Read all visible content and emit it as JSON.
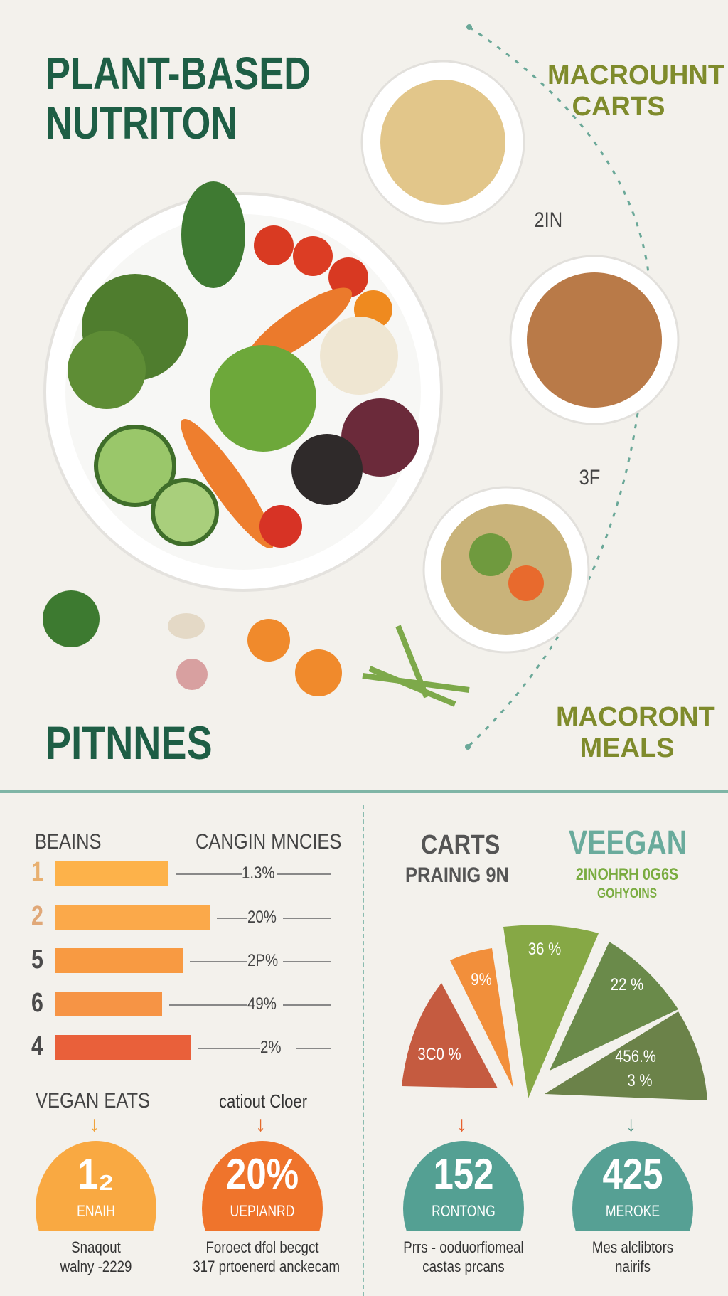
{
  "header": {
    "title_line1": "PLANT-BASED",
    "title_line2": "NUTRITON",
    "subtitle": "PITNNES"
  },
  "right_labels": {
    "top_line1": "MACROUHNT",
    "top_line2": "CARTS",
    "step1": "2IN",
    "step2": "3F",
    "bottom_line1": "MACORONT",
    "bottom_line2": "MEALS"
  },
  "bars": {
    "header_left": "BEAINS",
    "header_right": "CANGIN MNCIES",
    "items": [
      {
        "rank": "1",
        "value": "1.3%",
        "fill": 0.55,
        "color": "#fdb24a",
        "rank_color": "#e8b070"
      },
      {
        "rank": "2",
        "value": "20%",
        "fill": 0.75,
        "color": "#fba94a",
        "rank_color": "#e0a878"
      },
      {
        "rank": "5",
        "value": "2P%",
        "fill": 0.62,
        "color": "#f89a42",
        "rank_color": "#4a4a4a"
      },
      {
        "rank": "6",
        "value": "49%",
        "fill": 0.52,
        "color": "#f69445",
        "rank_color": "#4a4a4a"
      },
      {
        "rank": "4",
        "value": "2%",
        "fill": 0.66,
        "color": "#e9603a",
        "rank_color": "#4a4a4a"
      }
    ]
  },
  "pie": {
    "heading_line1": "CARTS",
    "heading_line2": "PRAINIG 9N",
    "vegan_title": "VEEGAN",
    "vegan_line2": "2INOHRH 0G6S",
    "vegan_line3": "GOHYOINS",
    "slices": [
      {
        "label": "3C0 %",
        "color": "#c55b40"
      },
      {
        "label": "9%",
        "color": "#f28f3b"
      },
      {
        "label": "36 %",
        "color": "#86a845"
      },
      {
        "label": "22 %",
        "color": "#6a8a4a"
      },
      {
        "label": "456.%",
        "label2": "3 %",
        "color": "#6b8249"
      }
    ]
  },
  "stats": {
    "left_heading": "VEGAN EATS",
    "mid_heading": "catiout Cloer",
    "items": [
      {
        "value": "1₂",
        "label": "ENAIH",
        "caption1": "Snaqout",
        "caption2": "walny -2229",
        "color": "#f9a942",
        "arrow": "#f0a23c"
      },
      {
        "value": "20%",
        "label": "UEPIANRD",
        "caption1": "Foroect dfol becgct",
        "caption2": "317 prtoenerd anckecam",
        "color": "#ef742c",
        "arrow": "#e46a2a"
      },
      {
        "value": "152",
        "label": "RONTONG",
        "caption1": "Prrs - ooduorfiomeal",
        "caption2": "castas prcans",
        "color": "#54a093",
        "arrow": "#e8612e"
      },
      {
        "value": "425",
        "label": "MEROKE",
        "caption1": "Mes alclibtors",
        "caption2": "nairifs",
        "color": "#56a094",
        "arrow": "#4a8f80"
      }
    ]
  }
}
